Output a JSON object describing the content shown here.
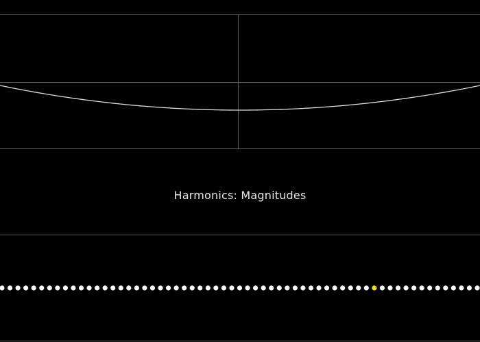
{
  "section_title": "Harmonics: Magnitudes",
  "colors": {
    "background": "#000000",
    "grid_line": "#5a5a5a",
    "waveform": "#e0e0e0",
    "dot": "#ffffff",
    "dot_selected": "#f2e000",
    "title_text": "#e6e6e6"
  },
  "harmonics": {
    "count": 62,
    "selected_index": 47,
    "magnitudes": [
      0,
      0,
      0,
      0,
      0,
      0,
      0,
      0,
      0,
      0,
      0,
      0,
      0,
      0,
      0,
      0,
      0,
      0,
      0,
      0,
      0,
      0,
      0,
      0,
      0,
      0,
      0,
      0,
      0,
      0,
      0,
      0,
      0,
      0,
      0,
      0,
      0,
      0,
      0,
      0,
      0,
      0,
      0,
      0,
      0,
      0,
      0,
      0,
      0,
      0,
      0,
      0,
      0,
      0,
      0,
      0,
      0,
      0,
      0,
      0,
      0,
      0
    ]
  }
}
